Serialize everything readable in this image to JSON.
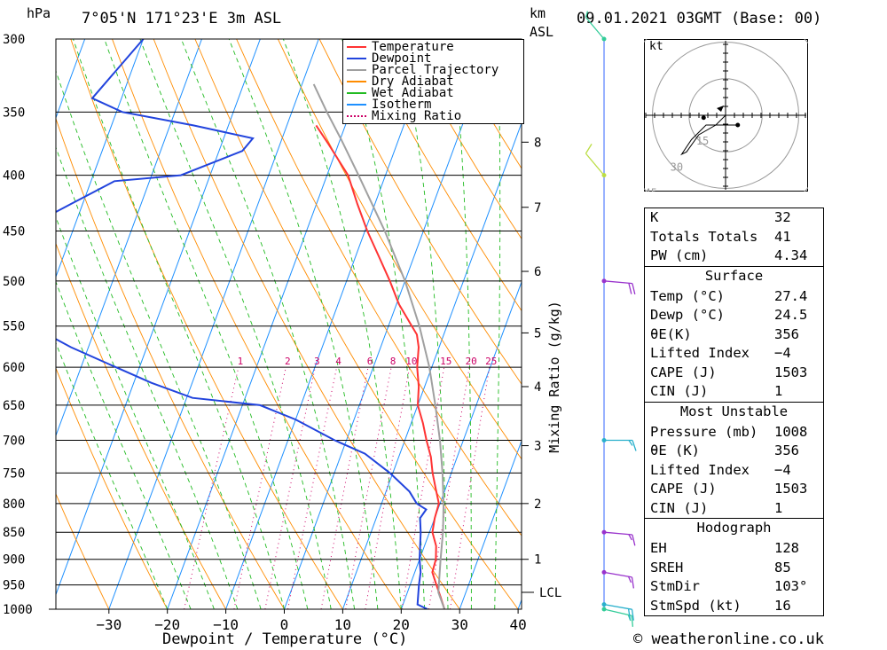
{
  "header": {
    "pressure_unit": "hPa",
    "location": "7°05'N 171°23'E 3m ASL",
    "height_unit": "km",
    "height_ref": "ASL",
    "datetime": "09.01.2021 03GMT (Base: 00)",
    "credit": "© weatheronline.co.uk"
  },
  "chart_data": {
    "type": "skew-t log-p",
    "xlabel": "Dewpoint / Temperature (°C)",
    "ylabel_right": "Mixing Ratio (g/kg)",
    "x_ticks": [
      -30,
      -20,
      -10,
      0,
      10,
      20,
      30,
      40
    ],
    "pressure_levels": [
      300,
      350,
      400,
      450,
      500,
      550,
      600,
      650,
      700,
      750,
      800,
      850,
      900,
      950,
      1000
    ],
    "km_ticks": [
      {
        "km": 1,
        "p": 900
      },
      {
        "km": 2,
        "p": 800
      },
      {
        "km": 3,
        "p": 708
      },
      {
        "km": 4,
        "p": 625
      },
      {
        "km": 5,
        "p": 558
      },
      {
        "km": 6,
        "p": 490
      },
      {
        "km": 7,
        "p": 428
      },
      {
        "km": 8,
        "p": 373
      }
    ],
    "lcl_label": "LCL",
    "lcl_pressure": 965,
    "mixing_ratio_labels": [
      "1",
      "2",
      "3",
      "4",
      "6",
      "8",
      "10",
      "15",
      "20",
      "25"
    ],
    "legend": [
      "Temperature",
      "Dewpoint",
      "Parcel Trajectory",
      "Dry Adiabat",
      "Wet Adiabat",
      "Isotherm",
      "Mixing Ratio"
    ],
    "colors": {
      "temperature": "#ff3333",
      "dewpoint": "#2244dd",
      "parcel": "#a0a0a0",
      "dry_adiabat": "#ff8c00",
      "wet_adiabat": "#22bb22",
      "isotherm": "#1e90ff",
      "mixing_ratio": "#cc0066"
    },
    "series": [
      {
        "name": "Temperature",
        "points": [
          [
            1000,
            27.4
          ],
          [
            975,
            26
          ],
          [
            950,
            24.5
          ],
          [
            925,
            23
          ],
          [
            900,
            22.8
          ],
          [
            875,
            22
          ],
          [
            850,
            20.5
          ],
          [
            825,
            20
          ],
          [
            800,
            19.8
          ],
          [
            775,
            18.3
          ],
          [
            750,
            16.8
          ],
          [
            725,
            15.5
          ],
          [
            700,
            13.7
          ],
          [
            675,
            12
          ],
          [
            650,
            10
          ],
          [
            625,
            9
          ],
          [
            600,
            7.5
          ],
          [
            575,
            6.5
          ],
          [
            560,
            5.4
          ],
          [
            550,
            4
          ],
          [
            525,
            0.4
          ],
          [
            500,
            -2.6
          ],
          [
            475,
            -6
          ],
          [
            450,
            -9.6
          ],
          [
            425,
            -13
          ],
          [
            400,
            -16.4
          ],
          [
            375,
            -21.6
          ],
          [
            360,
            -25
          ]
        ]
      },
      {
        "name": "Dewpoint",
        "points": [
          [
            1000,
            24.5
          ],
          [
            990,
            22.5
          ],
          [
            950,
            21.5
          ],
          [
            925,
            21
          ],
          [
            900,
            20
          ],
          [
            850,
            18.5
          ],
          [
            825,
            17.5
          ],
          [
            810,
            18
          ],
          [
            805,
            17
          ],
          [
            800,
            16
          ],
          [
            780,
            14
          ],
          [
            750,
            9.5
          ],
          [
            720,
            4
          ],
          [
            700,
            -2
          ],
          [
            670,
            -10
          ],
          [
            650,
            -17
          ],
          [
            640,
            -29
          ],
          [
            620,
            -37
          ],
          [
            600,
            -44
          ],
          [
            575,
            -53
          ],
          [
            550,
            -61
          ],
          [
            525,
            -66
          ],
          [
            500,
            -77
          ],
          [
            475,
            -74
          ],
          [
            450,
            -69
          ],
          [
            425,
            -62
          ],
          [
            405,
            -56
          ],
          [
            400,
            -45
          ],
          [
            380,
            -36
          ],
          [
            370,
            -35
          ],
          [
            360,
            -46
          ],
          [
            350,
            -59
          ],
          [
            340,
            -65
          ],
          [
            300,
            -60
          ]
        ]
      },
      {
        "name": "Parcel Trajectory",
        "points": [
          [
            1000,
            27.4
          ],
          [
            965,
            25.3
          ],
          [
            900,
            23.6
          ],
          [
            850,
            22.3
          ],
          [
            800,
            20.6
          ],
          [
            750,
            18.5
          ],
          [
            700,
            16
          ],
          [
            650,
            13
          ],
          [
            600,
            9.6
          ],
          [
            550,
            5.3
          ],
          [
            500,
            0
          ],
          [
            450,
            -6.6
          ],
          [
            400,
            -14.6
          ],
          [
            370,
            -20
          ],
          [
            350,
            -24
          ],
          [
            330,
            -28
          ]
        ]
      }
    ],
    "wind_barbs": [
      {
        "p": 1000,
        "dir": 103,
        "spd": 15,
        "color": "#33cc99"
      },
      {
        "p": 990,
        "dir": 100,
        "spd": 20,
        "color": "#2ab0cc"
      },
      {
        "p": 925,
        "dir": 100,
        "spd": 15,
        "color": "#9933cc"
      },
      {
        "p": 850,
        "dir": 95,
        "spd": 15,
        "color": "#9933cc"
      },
      {
        "p": 700,
        "dir": 90,
        "spd": 15,
        "color": "#2ab0cc"
      },
      {
        "p": 500,
        "dir": 95,
        "spd": 20,
        "color": "#9933cc"
      },
      {
        "p": 400,
        "dir": 320,
        "spd": 10,
        "color": "#bbdd44"
      },
      {
        "p": 300,
        "dir": 320,
        "spd": 5,
        "color": "#33cc99"
      }
    ]
  },
  "hodograph": {
    "unit_label": "kt",
    "ring_labels": [
      "15",
      "30",
      "45"
    ],
    "points": [
      [
        0,
        0
      ],
      [
        -4,
        -4
      ],
      [
        -11,
        -8
      ],
      [
        -16,
        -15
      ],
      [
        -18,
        -16
      ],
      [
        -14,
        -10
      ],
      [
        -8,
        -4
      ],
      [
        5,
        -4
      ]
    ]
  },
  "indices": {
    "general": [
      {
        "label": "K",
        "value": "32"
      },
      {
        "label": "Totals Totals",
        "value": "41"
      },
      {
        "label": "PW (cm)",
        "value": "4.34"
      }
    ],
    "surface": {
      "title": "Surface",
      "rows": [
        {
          "label": "Temp (°C)",
          "value": "27.4"
        },
        {
          "label": "Dewp (°C)",
          "value": "24.5"
        },
        {
          "label": "θE(K)",
          "value": "356"
        },
        {
          "label": "Lifted Index",
          "value": "-4"
        },
        {
          "label": "CAPE (J)",
          "value": "1503"
        },
        {
          "label": "CIN (J)",
          "value": "1"
        }
      ]
    },
    "most_unstable": {
      "title": "Most Unstable",
      "rows": [
        {
          "label": "Pressure (mb)",
          "value": "1008"
        },
        {
          "label": "θE (K)",
          "value": "356"
        },
        {
          "label": "Lifted Index",
          "value": "-4"
        },
        {
          "label": "CAPE (J)",
          "value": "1503"
        },
        {
          "label": "CIN (J)",
          "value": "1"
        }
      ]
    },
    "hodograph": {
      "title": "Hodograph",
      "rows": [
        {
          "label": "EH",
          "value": "128"
        },
        {
          "label": "SREH",
          "value": "85"
        },
        {
          "label": "StmDir",
          "value": "103°"
        },
        {
          "label": "StmSpd (kt)",
          "value": "16"
        }
      ]
    }
  }
}
